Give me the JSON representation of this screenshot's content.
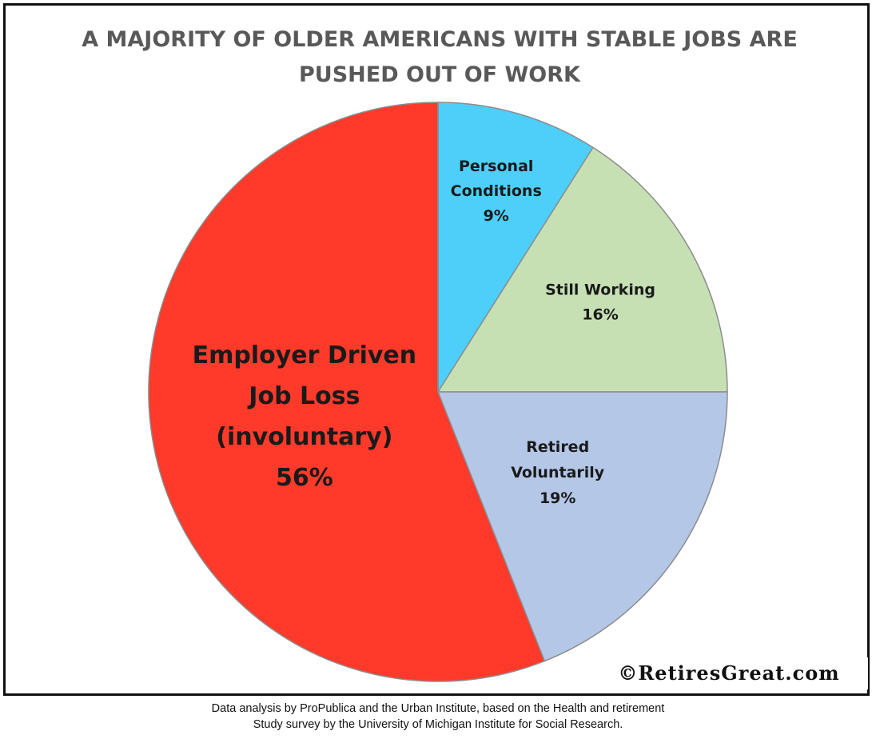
{
  "chart_data": {
    "type": "pie",
    "title": [
      "A MAJORITY OF OLDER AMERICANS WITH STABLE JOBS ARE",
      "PUSHED OUT OF WORK"
    ],
    "slices": [
      {
        "label": [
          "Personal",
          "Conditions",
          "9%"
        ],
        "value": 9,
        "color": "#4dcffa"
      },
      {
        "label": [
          "Still Working",
          "16%"
        ],
        "value": 16,
        "color": "#c6e0b4"
      },
      {
        "label": [
          "Retired",
          "Voluntarily",
          "19%"
        ],
        "value": 19,
        "color": "#b4c7e7"
      },
      {
        "label": [
          "Employer  Driven",
          "Job Loss",
          "(involuntary)",
          "56%"
        ],
        "value": 56,
        "color": "#ff3a2a"
      }
    ],
    "start": "top",
    "direction": "clockwise",
    "legend": "none"
  },
  "watermark": "©RetiresGreat.com",
  "source_note": [
    "Data analysis by ProPublica and the Urban Institute, based on the Health and retirement",
    "Study survey  by the University of Michigan Institute for Social Research."
  ]
}
